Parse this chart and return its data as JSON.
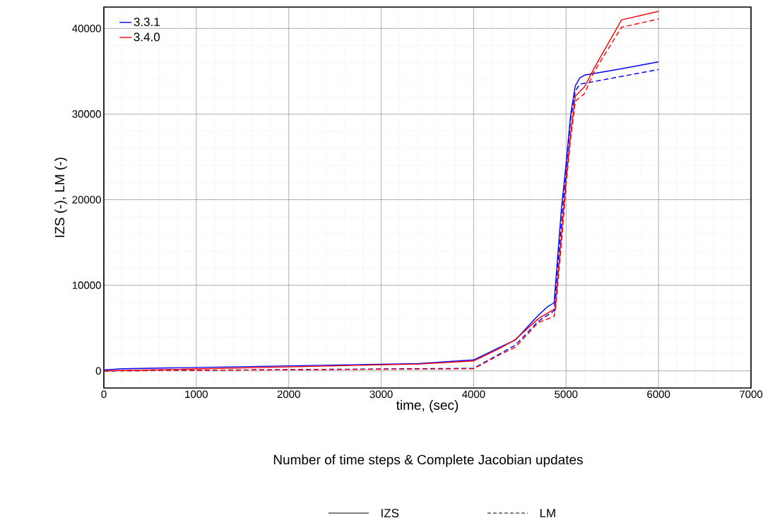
{
  "chart_data": {
    "type": "line",
    "xlabel": "time, (sec)",
    "subtitle": "Number of time steps & Complete Jacobian updates",
    "ylabel": "IZS (-), LM (-)",
    "xlim": [
      0,
      7000
    ],
    "xticks": [
      0,
      1000,
      2000,
      3000,
      4000,
      5000,
      6000,
      7000
    ],
    "ylim": [
      -2000,
      42500
    ],
    "yticks": [
      0,
      10000,
      20000,
      30000,
      40000
    ],
    "grid": true,
    "legend": "top left",
    "marker": "none",
    "annotations": [
      "IZS",
      "LM"
    ],
    "series": [
      {
        "name": "3.3.1",
        "color": "#0000ff",
        "line_style": "solid",
        "x": [
          0,
          200,
          3400,
          4000,
          4250,
          4450,
          4700,
          4800,
          4870,
          4950,
          5000,
          5050,
          5100,
          5150,
          5200,
          5600,
          6000
        ],
        "values": [
          100,
          250,
          850,
          1280,
          2600,
          3600,
          6500,
          7500,
          7950,
          19000,
          24200,
          30000,
          33300,
          34250,
          34550,
          35300,
          36100
        ]
      },
      {
        "name": "3.4.0",
        "color": "#ff0000",
        "line_style": "solid",
        "x": [
          0,
          3400,
          4000,
          4250,
          4450,
          4700,
          4870,
          4880,
          4950,
          5000,
          5050,
          5100,
          5200,
          5300,
          5600,
          6000
        ],
        "values": [
          0,
          800,
          1160,
          2450,
          3650,
          6100,
          7200,
          7000,
          15900,
          22300,
          27800,
          32100,
          33200,
          35300,
          41000,
          42000
        ]
      },
      {
        "color": "#0000ff",
        "line_style": "dashed",
        "x": [
          0,
          4000,
          4250,
          4450,
          4700,
          4870,
          4950,
          5000,
          5050,
          5100,
          5150,
          5300,
          6000
        ],
        "values": [
          0,
          300,
          1800,
          3000,
          5800,
          7000,
          17400,
          23500,
          29400,
          32700,
          33500,
          33800,
          35200
        ]
      },
      {
        "color": "#ff0000",
        "line_style": "dashed",
        "x": [
          0,
          4000,
          4250,
          4450,
          4700,
          4870,
          4890,
          4950,
          5000,
          5050,
          5100,
          5200,
          5300,
          5600,
          6000
        ],
        "values": [
          0,
          250,
          1700,
          2750,
          5650,
          6350,
          7650,
          15000,
          21700,
          27200,
          31500,
          32400,
          34900,
          40150,
          41100
        ]
      }
    ]
  }
}
